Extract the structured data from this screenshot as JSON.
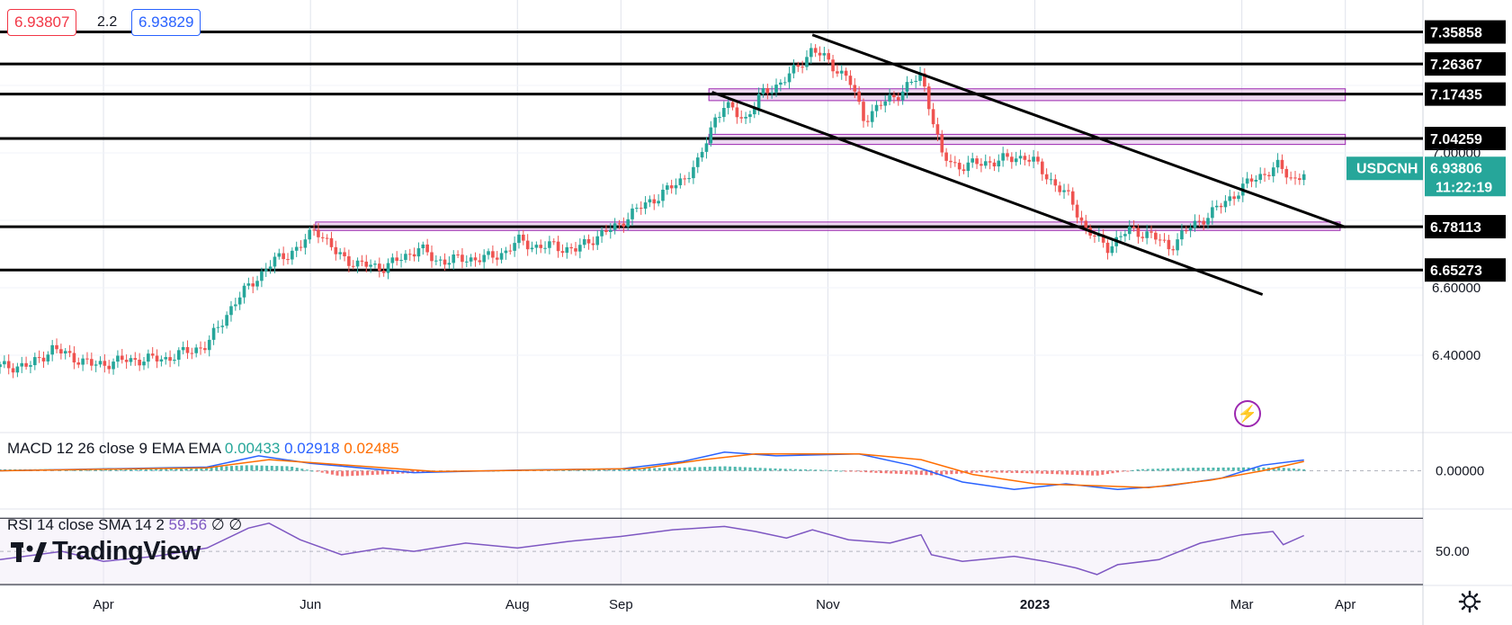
{
  "quote": {
    "sell": "6.93807",
    "spread": "2.2",
    "buy": "6.93829"
  },
  "symbol": {
    "name": "USDCNH",
    "price": "6.93806",
    "countdown": "11:22:19"
  },
  "brand": {
    "name": "TradingView"
  },
  "icons": {
    "logo": "tradingview-logo-icon",
    "settings": "gear-icon",
    "alert": "lightning-icon"
  },
  "colors": {
    "up": "#26a69a",
    "down": "#ef5350",
    "level": "#000000",
    "zone": "#e1bee7",
    "zone_border": "#9c27b0",
    "macd": "#2962ff",
    "signal": "#ff6d00",
    "rsi": "#7e57c2",
    "symbol_tag": "#26a69a"
  },
  "macd": {
    "label": "MACD 12 26 close 9 EMA EMA",
    "hist": "0.00433",
    "macd": "0.02918",
    "signal": "0.02485",
    "zero_label": "0.00000"
  },
  "rsi": {
    "label": "RSI 14 close SMA 14 2",
    "value": "59.56",
    "extra1": "∅",
    "extra2": "∅",
    "mid_label": "50.00"
  },
  "chart_data": {
    "type": "candlestick",
    "title": "USDCNH",
    "x_ticks": [
      "Apr",
      "Jun",
      "Aug",
      "Sep",
      "Nov",
      "2023",
      "Mar",
      "Apr"
    ],
    "x_tick_months": [
      3,
      5,
      7,
      8,
      10,
      12,
      14,
      15
    ],
    "x_range_months": [
      2.0,
      15.75
    ],
    "y_ticks": [
      "6.40000",
      "6.60000",
      "7.00000"
    ],
    "y_tick_values": [
      6.4,
      6.6,
      7.0
    ],
    "y_range": [
      6.2,
      7.4
    ],
    "levels": [
      {
        "label": "7.35858",
        "value": 7.35858
      },
      {
        "label": "7.26367",
        "value": 7.26367
      },
      {
        "label": "7.17435",
        "value": 7.17435
      },
      {
        "label": "7.04259",
        "value": 7.04259
      },
      {
        "label": "6.78113",
        "value": 6.78113
      },
      {
        "label": "6.65273",
        "value": 6.65273
      }
    ],
    "zones": [
      {
        "from_month": 8.85,
        "to_month": 15.0,
        "low": 7.155,
        "high": 7.19
      },
      {
        "from_month": 8.85,
        "to_month": 15.0,
        "low": 7.025,
        "high": 7.055
      },
      {
        "from_month": 5.05,
        "to_month": 14.95,
        "low": 6.77,
        "high": 6.795
      }
    ],
    "trendlines": [
      {
        "from": [
          9.85,
          7.35
        ],
        "to": [
          15.0,
          6.78
        ]
      },
      {
        "from": [
          8.88,
          7.18
        ],
        "to": [
          14.2,
          6.58
        ]
      }
    ],
    "closes": [
      [
        2.0,
        6.365
      ],
      [
        2.3,
        6.37
      ],
      [
        2.5,
        6.42
      ],
      [
        2.9,
        6.37
      ],
      [
        3.2,
        6.385
      ],
      [
        3.6,
        6.39
      ],
      [
        4.0,
        6.43
      ],
      [
        4.25,
        6.55
      ],
      [
        4.45,
        6.62
      ],
      [
        4.65,
        6.68
      ],
      [
        4.9,
        6.72
      ],
      [
        5.05,
        6.78
      ],
      [
        5.25,
        6.7
      ],
      [
        5.45,
        6.67
      ],
      [
        5.7,
        6.66
      ],
      [
        5.9,
        6.69
      ],
      [
        6.05,
        6.72
      ],
      [
        6.2,
        6.68
      ],
      [
        6.5,
        6.685
      ],
      [
        6.75,
        6.69
      ],
      [
        6.9,
        6.71
      ],
      [
        7.0,
        6.74
      ],
      [
        7.2,
        6.72
      ],
      [
        7.35,
        6.725
      ],
      [
        7.55,
        6.71
      ],
      [
        7.75,
        6.75
      ],
      [
        7.95,
        6.78
      ],
      [
        8.1,
        6.82
      ],
      [
        8.35,
        6.87
      ],
      [
        8.55,
        6.91
      ],
      [
        8.75,
        6.97
      ],
      [
        8.9,
        7.1
      ],
      [
        9.0,
        7.14
      ],
      [
        9.2,
        7.1
      ],
      [
        9.35,
        7.17
      ],
      [
        9.55,
        7.21
      ],
      [
        9.7,
        7.25
      ],
      [
        9.85,
        7.31
      ],
      [
        10.0,
        7.27
      ],
      [
        10.2,
        7.22
      ],
      [
        10.35,
        7.1
      ],
      [
        10.5,
        7.14
      ],
      [
        10.7,
        7.18
      ],
      [
        10.9,
        7.23
      ],
      [
        11.0,
        7.12
      ],
      [
        11.1,
        6.99
      ],
      [
        11.25,
        6.96
      ],
      [
        11.5,
        6.97
      ],
      [
        11.7,
        6.98
      ],
      [
        11.9,
        6.99
      ],
      [
        12.0,
        6.97
      ],
      [
        12.15,
        6.92
      ],
      [
        12.35,
        6.86
      ],
      [
        12.5,
        6.77
      ],
      [
        12.7,
        6.72
      ],
      [
        12.9,
        6.77
      ],
      [
        13.1,
        6.76
      ],
      [
        13.3,
        6.72
      ],
      [
        13.5,
        6.78
      ],
      [
        13.7,
        6.82
      ],
      [
        13.9,
        6.87
      ],
      [
        14.1,
        6.92
      ],
      [
        14.35,
        6.96
      ],
      [
        14.5,
        6.92
      ],
      [
        14.6,
        6.94
      ]
    ],
    "macd_hist": [
      [
        2.0,
        0.004
      ],
      [
        3.0,
        0.004
      ],
      [
        4.0,
        0.01
      ],
      [
        4.4,
        0.015
      ],
      [
        4.8,
        0.012
      ],
      [
        5.3,
        -0.015
      ],
      [
        6.0,
        -0.006
      ],
      [
        7.0,
        0.002
      ],
      [
        8.0,
        0.006
      ],
      [
        8.5,
        0.008
      ],
      [
        9.0,
        0.012
      ],
      [
        9.5,
        0.006
      ],
      [
        10.0,
        0.002
      ],
      [
        10.5,
        -0.006
      ],
      [
        11.0,
        -0.012
      ],
      [
        11.5,
        -0.004
      ],
      [
        12.0,
        -0.007
      ],
      [
        12.6,
        -0.013
      ],
      [
        13.0,
        0.004
      ],
      [
        13.5,
        0.008
      ],
      [
        14.0,
        0.009
      ],
      [
        14.4,
        0.008
      ],
      [
        14.6,
        0.004
      ]
    ],
    "macd_line": [
      [
        2.0,
        0.0
      ],
      [
        3.0,
        0.005
      ],
      [
        4.0,
        0.01
      ],
      [
        4.5,
        0.04
      ],
      [
        5.0,
        0.02
      ],
      [
        6.0,
        -0.005
      ],
      [
        7.0,
        0.002
      ],
      [
        8.0,
        0.005
      ],
      [
        8.6,
        0.025
      ],
      [
        9.0,
        0.05
      ],
      [
        9.5,
        0.04
      ],
      [
        10.3,
        0.045
      ],
      [
        10.8,
        0.015
      ],
      [
        11.3,
        -0.03
      ],
      [
        11.8,
        -0.05
      ],
      [
        12.3,
        -0.035
      ],
      [
        12.8,
        -0.05
      ],
      [
        13.3,
        -0.04
      ],
      [
        13.8,
        -0.02
      ],
      [
        14.2,
        0.015
      ],
      [
        14.6,
        0.029
      ]
    ],
    "signal_line": [
      [
        2.0,
        0.0
      ],
      [
        3.0,
        0.004
      ],
      [
        4.0,
        0.008
      ],
      [
        4.6,
        0.03
      ],
      [
        5.2,
        0.018
      ],
      [
        6.2,
        -0.002
      ],
      [
        7.2,
        0.002
      ],
      [
        8.2,
        0.006
      ],
      [
        8.8,
        0.03
      ],
      [
        9.3,
        0.045
      ],
      [
        10.3,
        0.045
      ],
      [
        10.9,
        0.03
      ],
      [
        11.4,
        -0.01
      ],
      [
        12.0,
        -0.035
      ],
      [
        12.6,
        -0.04
      ],
      [
        13.1,
        -0.045
      ],
      [
        13.7,
        -0.025
      ],
      [
        14.2,
        0.0
      ],
      [
        14.6,
        0.025
      ]
    ],
    "macd_range": [
      -0.1,
      0.1
    ],
    "rsi_line": [
      [
        2.0,
        45
      ],
      [
        2.6,
        50
      ],
      [
        3.0,
        44
      ],
      [
        3.5,
        47
      ],
      [
        4.0,
        52
      ],
      [
        4.4,
        64
      ],
      [
        4.6,
        67
      ],
      [
        4.9,
        57
      ],
      [
        5.3,
        48
      ],
      [
        5.7,
        52
      ],
      [
        6.0,
        50
      ],
      [
        6.5,
        55
      ],
      [
        7.0,
        52
      ],
      [
        7.5,
        56
      ],
      [
        8.0,
        59
      ],
      [
        8.5,
        63
      ],
      [
        9.0,
        65
      ],
      [
        9.3,
        62
      ],
      [
        9.6,
        58
      ],
      [
        9.85,
        63
      ],
      [
        10.2,
        57
      ],
      [
        10.6,
        55
      ],
      [
        10.9,
        60
      ],
      [
        11.0,
        48
      ],
      [
        11.3,
        44
      ],
      [
        11.8,
        47
      ],
      [
        12.1,
        44
      ],
      [
        12.4,
        40
      ],
      [
        12.6,
        36
      ],
      [
        12.8,
        42
      ],
      [
        13.2,
        45
      ],
      [
        13.6,
        55
      ],
      [
        14.0,
        60
      ],
      [
        14.3,
        62
      ],
      [
        14.4,
        54
      ],
      [
        14.6,
        59.56
      ]
    ],
    "rsi_range": [
      30,
      75
    ]
  }
}
